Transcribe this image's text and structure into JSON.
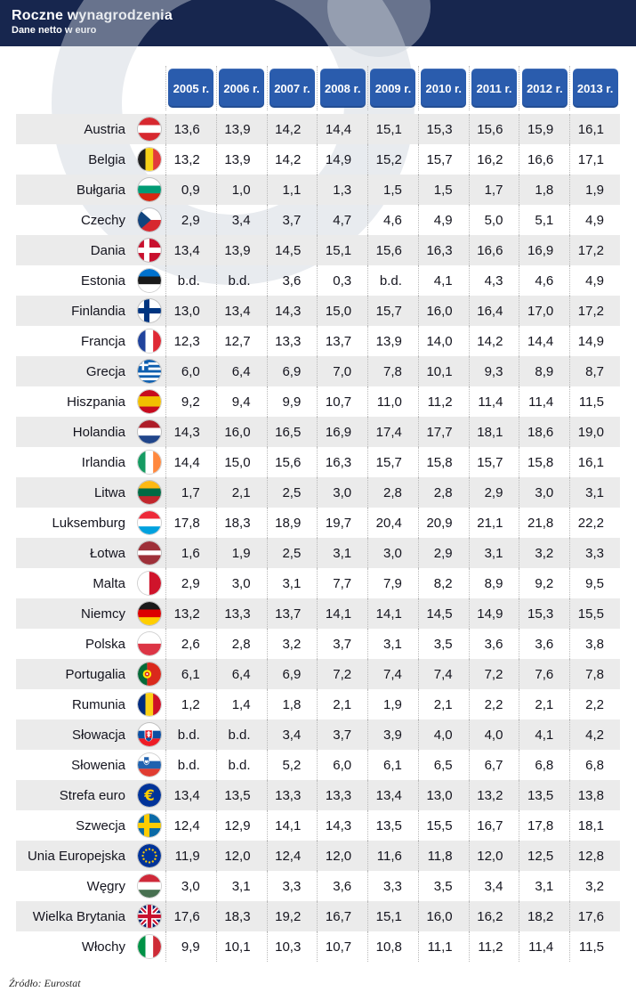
{
  "header": {
    "title": "Roczne wynagrodzenia",
    "subtitle": "Dane netto w euro"
  },
  "footer": {
    "source": "Źródło: Eurostat"
  },
  "colors": {
    "title_bar_bg": "#17264E",
    "year_header_bg": "#2A5CAD",
    "row_alt_bg": "#EBEBEB",
    "text": "#14141E",
    "divider_dotted": "#B9B9B9"
  },
  "chart_data": {
    "type": "table",
    "title": "Roczne wynagrodzenia",
    "subtitle": "Dane netto w euro",
    "source": "Źródło: Eurostat",
    "columns": [
      "2005 r.",
      "2006 r.",
      "2007 r.",
      "2008 r.",
      "2009 r.",
      "2010 r.",
      "2011 r.",
      "2012 r.",
      "2013 r."
    ],
    "rows": [
      {
        "country": "Austria",
        "flag": "austria",
        "values": [
          "13,6",
          "13,9",
          "14,2",
          "14,4",
          "15,1",
          "15,3",
          "15,6",
          "15,9",
          "16,1"
        ]
      },
      {
        "country": "Belgia",
        "flag": "belgium",
        "values": [
          "13,2",
          "13,9",
          "14,2",
          "14,9",
          "15,2",
          "15,7",
          "16,2",
          "16,6",
          "17,1"
        ]
      },
      {
        "country": "Bułgaria",
        "flag": "bulgaria",
        "values": [
          "0,9",
          "1,0",
          "1,1",
          "1,3",
          "1,5",
          "1,5",
          "1,7",
          "1,8",
          "1,9"
        ]
      },
      {
        "country": "Czechy",
        "flag": "czechia",
        "values": [
          "2,9",
          "3,4",
          "3,7",
          "4,7",
          "4,6",
          "4,9",
          "5,0",
          "5,1",
          "4,9"
        ]
      },
      {
        "country": "Dania",
        "flag": "denmark",
        "values": [
          "13,4",
          "13,9",
          "14,5",
          "15,1",
          "15,6",
          "16,3",
          "16,6",
          "16,9",
          "17,2"
        ]
      },
      {
        "country": "Estonia",
        "flag": "estonia",
        "values": [
          "b.d.",
          "b.d.",
          "3,6",
          "0,3",
          "b.d.",
          "4,1",
          "4,3",
          "4,6",
          "4,9"
        ]
      },
      {
        "country": "Finlandia",
        "flag": "finland",
        "values": [
          "13,0",
          "13,4",
          "14,3",
          "15,0",
          "15,7",
          "16,0",
          "16,4",
          "17,0",
          "17,2"
        ]
      },
      {
        "country": "Francja",
        "flag": "france",
        "values": [
          "12,3",
          "12,7",
          "13,3",
          "13,7",
          "13,9",
          "14,0",
          "14,2",
          "14,4",
          "14,9"
        ]
      },
      {
        "country": "Grecja",
        "flag": "greece",
        "values": [
          "6,0",
          "6,4",
          "6,9",
          "7,0",
          "7,8",
          "10,1",
          "9,3",
          "8,9",
          "8,7"
        ]
      },
      {
        "country": "Hiszpania",
        "flag": "spain",
        "values": [
          "9,2",
          "9,4",
          "9,9",
          "10,7",
          "11,0",
          "11,2",
          "11,4",
          "11,4",
          "11,5"
        ]
      },
      {
        "country": "Holandia",
        "flag": "netherlands",
        "values": [
          "14,3",
          "16,0",
          "16,5",
          "16,9",
          "17,4",
          "17,7",
          "18,1",
          "18,6",
          "19,0"
        ]
      },
      {
        "country": "Irlandia",
        "flag": "ireland",
        "values": [
          "14,4",
          "15,0",
          "15,6",
          "16,3",
          "15,7",
          "15,8",
          "15,7",
          "15,8",
          "16,1"
        ]
      },
      {
        "country": "Litwa",
        "flag": "lithuania",
        "values": [
          "1,7",
          "2,1",
          "2,5",
          "3,0",
          "2,8",
          "2,8",
          "2,9",
          "3,0",
          "3,1"
        ]
      },
      {
        "country": "Luksemburg",
        "flag": "luxembourg",
        "values": [
          "17,8",
          "18,3",
          "18,9",
          "19,7",
          "20,4",
          "20,9",
          "21,1",
          "21,8",
          "22,2"
        ]
      },
      {
        "country": "Łotwa",
        "flag": "latvia",
        "values": [
          "1,6",
          "1,9",
          "2,5",
          "3,1",
          "3,0",
          "2,9",
          "3,1",
          "3,2",
          "3,3"
        ]
      },
      {
        "country": "Malta",
        "flag": "malta",
        "values": [
          "2,9",
          "3,0",
          "3,1",
          "7,7",
          "7,9",
          "8,2",
          "8,9",
          "9,2",
          "9,5"
        ]
      },
      {
        "country": "Niemcy",
        "flag": "germany",
        "values": [
          "13,2",
          "13,3",
          "13,7",
          "14,1",
          "14,1",
          "14,5",
          "14,9",
          "15,3",
          "15,5"
        ]
      },
      {
        "country": "Polska",
        "flag": "poland",
        "values": [
          "2,6",
          "2,8",
          "3,2",
          "3,7",
          "3,1",
          "3,5",
          "3,6",
          "3,6",
          "3,8"
        ]
      },
      {
        "country": "Portugalia",
        "flag": "portugal",
        "values": [
          "6,1",
          "6,4",
          "6,9",
          "7,2",
          "7,4",
          "7,4",
          "7,2",
          "7,6",
          "7,8"
        ]
      },
      {
        "country": "Rumunia",
        "flag": "romania",
        "values": [
          "1,2",
          "1,4",
          "1,8",
          "2,1",
          "1,9",
          "2,1",
          "2,2",
          "2,1",
          "2,2"
        ]
      },
      {
        "country": "Słowacja",
        "flag": "slovakia",
        "values": [
          "b.d.",
          "b.d.",
          "3,4",
          "3,7",
          "3,9",
          "4,0",
          "4,0",
          "4,1",
          "4,2"
        ]
      },
      {
        "country": "Słowenia",
        "flag": "slovenia",
        "values": [
          "b.d.",
          "b.d.",
          "5,2",
          "6,0",
          "6,1",
          "6,5",
          "6,7",
          "6,8",
          "6,8"
        ]
      },
      {
        "country": "Strefa euro",
        "flag": "eurozone",
        "values": [
          "13,4",
          "13,5",
          "13,3",
          "13,3",
          "13,4",
          "13,0",
          "13,2",
          "13,5",
          "13,8"
        ]
      },
      {
        "country": "Szwecja",
        "flag": "sweden",
        "values": [
          "12,4",
          "12,9",
          "14,1",
          "14,3",
          "13,5",
          "15,5",
          "16,7",
          "17,8",
          "18,1"
        ]
      },
      {
        "country": "Unia Europejska",
        "flag": "eu",
        "values": [
          "11,9",
          "12,0",
          "12,4",
          "12,0",
          "11,6",
          "11,8",
          "12,0",
          "12,5",
          "12,8"
        ]
      },
      {
        "country": "Węgry",
        "flag": "hungary",
        "values": [
          "3,0",
          "3,1",
          "3,3",
          "3,6",
          "3,3",
          "3,5",
          "3,4",
          "3,1",
          "3,2"
        ]
      },
      {
        "country": "Wielka Brytania",
        "flag": "uk",
        "values": [
          "17,6",
          "18,3",
          "19,2",
          "16,7",
          "15,1",
          "16,0",
          "16,2",
          "18,2",
          "17,6"
        ]
      },
      {
        "country": "Włochy",
        "flag": "italy",
        "values": [
          "9,9",
          "10,1",
          "10,3",
          "10,7",
          "10,8",
          "11,1",
          "11,2",
          "11,4",
          "11,5"
        ]
      }
    ]
  }
}
